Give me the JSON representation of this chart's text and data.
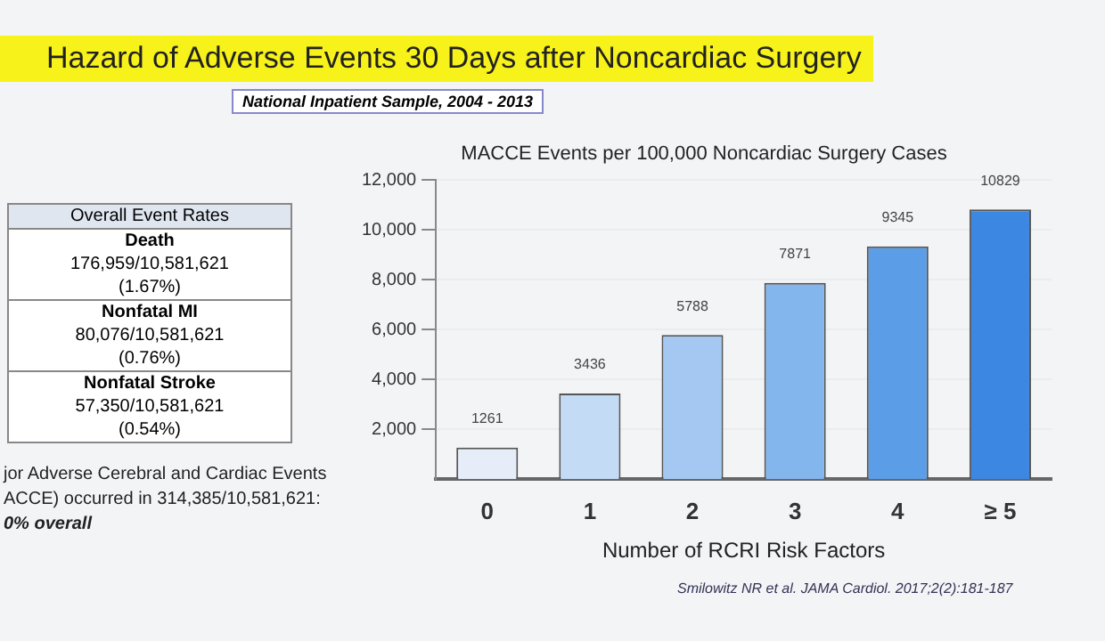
{
  "chart_data": {
    "type": "bar",
    "title": "Hazard of Adverse Events 30 Days after Noncardiac Surgery",
    "subtitle": "MACCE Events per 100,000 Noncardiac Surgery Cases",
    "xlabel": "Number of RCRI Risk Factors",
    "categories": [
      "0",
      "1",
      "2",
      "3",
      "4",
      "≥ 5"
    ],
    "values": [
      1261,
      3436,
      5788,
      7871,
      9345,
      10829
    ],
    "colors": [
      "#e6edf8",
      "#c4dbf6",
      "#a4c8f2",
      "#84b6ee",
      "#5c9de8",
      "#3b87e2"
    ],
    "ylim": [
      0,
      12000
    ],
    "yticks": [
      {
        "value": 2000,
        "label": "2,000"
      },
      {
        "value": 4000,
        "label": "4,000"
      },
      {
        "value": 6000,
        "label": "6,000"
      },
      {
        "value": 8000,
        "label": "8,000"
      },
      {
        "value": 10000,
        "label": "10,000"
      },
      {
        "value": 12000,
        "label": "12,000"
      }
    ],
    "grid": "y",
    "data_labels": true,
    "annotations": [
      "National Inpatient Sample, 2004 - 2013",
      "Overall Event Rates",
      "Death",
      "176,959/10,581,621",
      "(1.67%)",
      "Nonfatal MI",
      "80,076/10,581,621",
      "(0.76%)",
      "Nonfatal Stroke",
      "57,350/10,581,621",
      "(0.54%)",
      "jor Adverse Cerebral and Cardiac Events",
      "ACCE) occurred in 314,385/10,581,621:",
      "0% overall",
      "Smilowitz NR et al. JAMA Cardiol. 2017;2(2):181-187"
    ]
  }
}
